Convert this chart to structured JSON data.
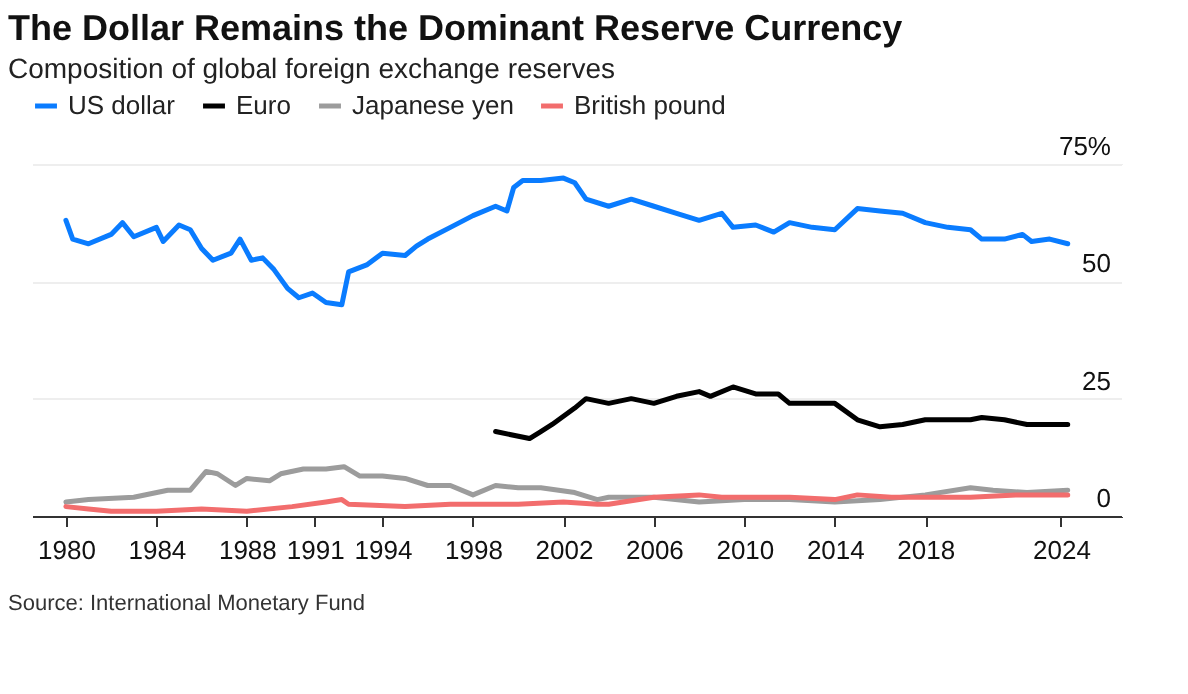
{
  "chart_data": {
    "type": "line",
    "title": "The Dollar Remains the Dominant Reserve Currency",
    "subtitle": "Composition of global foreign exchange reserves",
    "series": [
      {
        "name": "US dollar",
        "color": "#0a7cff",
        "x": [
          1980,
          1980.3,
          1981,
          1982,
          1982.5,
          1983,
          1984,
          1984.3,
          1985,
          1985.5,
          1986,
          1986.5,
          1987.3,
          1987.7,
          1988.2,
          1988.7,
          1989.2,
          1989.8,
          1990.3,
          1990.9,
          1991.5,
          1992.2,
          1992.5,
          1993.3,
          1994,
          1995,
          1995.5,
          1996,
          1997,
          1998,
          1999,
          1999.5,
          1999.8,
          2000.2,
          2001,
          2002,
          2002.5,
          2003,
          2004,
          2005,
          2006,
          2007,
          2008,
          2009,
          2009.5,
          2010.5,
          2011.3,
          2012,
          2013,
          2014,
          2015,
          2016,
          2017,
          2018,
          2019,
          2020,
          2020.5,
          2021.5,
          2022.3,
          2022.7,
          2023.5,
          2024.3
        ],
        "values": [
          63,
          59,
          58,
          60,
          62.5,
          59.5,
          61.5,
          58.5,
          62,
          61,
          57,
          54.5,
          56,
          59,
          54.5,
          55,
          52.5,
          48.5,
          46.5,
          47.5,
          45.5,
          45,
          52,
          53.5,
          56,
          55.5,
          57.5,
          59,
          61.5,
          64,
          66,
          65,
          70,
          71.5,
          71.5,
          72,
          71,
          67.5,
          66,
          67.5,
          66,
          64.5,
          63,
          64.5,
          61.5,
          62,
          60.5,
          62.5,
          61.5,
          61,
          65.5,
          65,
          64.5,
          62.5,
          61.5,
          61,
          59,
          59,
          60,
          58.5,
          59,
          58
        ]
      },
      {
        "name": "Euro",
        "color": "#000000",
        "x": [
          1999,
          2000.5,
          2001,
          2001.5,
          2002.5,
          2003,
          2004,
          2005,
          2006,
          2007,
          2008,
          2008.5,
          2009.5,
          2010.5,
          2011.5,
          2012,
          2013,
          2014,
          2015,
          2016,
          2017,
          2018,
          2019,
          2020,
          2020.5,
          2021.5,
          2022.5,
          2024.3
        ],
        "values": [
          18,
          16.5,
          18,
          19.5,
          23,
          25,
          24,
          25,
          24,
          25.5,
          26.5,
          25.5,
          27.5,
          26,
          26,
          24,
          24,
          24,
          20.5,
          19,
          19.5,
          20.5,
          20.5,
          20.5,
          21,
          20.5,
          19.5,
          19.5
        ]
      },
      {
        "name": "Japanese yen",
        "color": "#9c9c9c",
        "x": [
          1980,
          1981,
          1983,
          1984.5,
          1985.5,
          1986.2,
          1986.7,
          1987.5,
          1988,
          1989,
          1989.5,
          1990.5,
          1991.5,
          1992.3,
          1993,
          1994,
          1995,
          1996,
          1997,
          1998,
          1999,
          2000,
          2001,
          2002.5,
          2003.5,
          2004,
          2006,
          2008,
          2010,
          2012,
          2014,
          2016,
          2018,
          2020,
          2021,
          2022.5,
          2024.3
        ],
        "values": [
          3,
          3.5,
          4,
          5.5,
          5.5,
          9.5,
          9,
          6.5,
          8,
          7.5,
          9,
          10,
          10,
          10.5,
          8.5,
          8.5,
          8,
          6.5,
          6.5,
          4.5,
          6.5,
          6,
          6,
          5,
          3.5,
          4,
          4,
          3,
          3.5,
          3.5,
          3,
          3.5,
          4.5,
          6,
          5.5,
          5,
          5.5
        ]
      },
      {
        "name": "British pound",
        "color": "#f26d6d",
        "x": [
          1980,
          1981,
          1982,
          1984,
          1986,
          1988,
          1990,
          1991.5,
          1992.2,
          1992.5,
          1995,
          1997,
          2000,
          2002,
          2003.5,
          2004,
          2006,
          2008,
          2009,
          2012,
          2014,
          2015,
          2016.5,
          2018,
          2020,
          2022,
          2024.3
        ],
        "values": [
          2,
          1.5,
          1,
          1,
          1.5,
          1,
          2,
          3,
          3.5,
          2.5,
          2,
          2.5,
          2.5,
          3,
          2.5,
          2.5,
          4,
          4.5,
          4,
          4,
          3.5,
          4.5,
          4,
          4,
          4,
          4.5,
          4.5
        ]
      }
    ],
    "xlim": [
      1978.5,
      2026.7
    ],
    "xticks": [
      1980,
      1984,
      1988,
      1991,
      1994,
      1998,
      2002,
      2006,
      2010,
      2014,
      2018,
      2024
    ],
    "ylim": [
      0,
      75
    ],
    "yticks": [
      0,
      25,
      50,
      {
        "value": 75,
        "label": "75%"
      }
    ],
    "grid": "y",
    "legend": "top left",
    "annotations": [
      "Source: International Monetary Fund"
    ]
  }
}
